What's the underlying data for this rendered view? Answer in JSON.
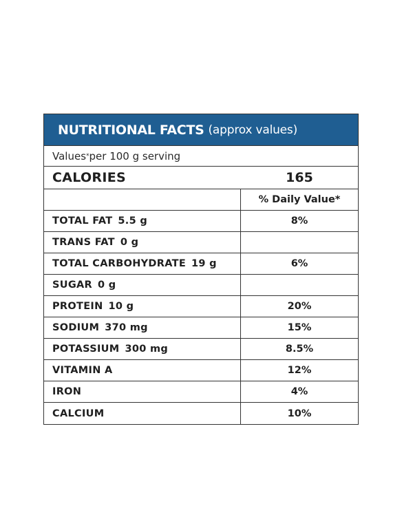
{
  "banner": {
    "title_bold": "NUTRITIONAL FACTS",
    "title_light": "(approx values)"
  },
  "serving": {
    "prefix": "Values",
    "marker": "*",
    "suffix": " per 100 g serving"
  },
  "calories": {
    "label": "CALORIES",
    "value": "165"
  },
  "column_header": {
    "left": "",
    "right": "% Daily Value*"
  },
  "rows": [
    {
      "name": "TOTAL FAT",
      "amount": "5.5 g",
      "dv": "8%"
    },
    {
      "name": "TRANS FAT",
      "amount": "0 g",
      "dv": ""
    },
    {
      "name": "TOTAL CARBOHYDRATE",
      "amount": "19 g",
      "dv": "6%"
    },
    {
      "name": "SUGAR",
      "amount": "0 g",
      "dv": ""
    },
    {
      "name": "PROTEIN",
      "amount": "10 g",
      "dv": "20%"
    },
    {
      "name": "SODIUM",
      "amount": "370 mg",
      "dv": "15%"
    },
    {
      "name": "POTASSIUM",
      "amount": "300 mg",
      "dv": "8.5%"
    },
    {
      "name": "VITAMIN A",
      "amount": "",
      "dv": "12%"
    },
    {
      "name": "IRON",
      "amount": "",
      "dv": "4%"
    },
    {
      "name": "CALCIUM",
      "amount": "",
      "dv": "10%"
    }
  ],
  "colors": {
    "banner_bg": "#1f5e92",
    "banner_text": "#ffffff",
    "border": "#333333"
  }
}
